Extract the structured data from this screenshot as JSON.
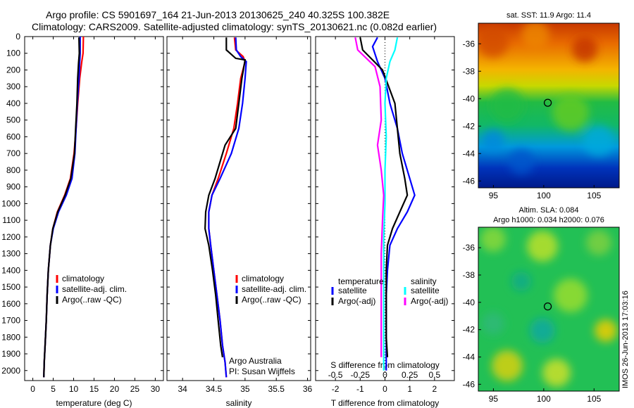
{
  "title_line1": "Argo profile: CS 5901697_164 21-Jun-2013 20130625_240 40.325S 100.382E",
  "title_line2": "Climatology: CARS2009. Satellite-adjusted climatology: synTS_20130621.nc (0.082d earlier)",
  "depth_ticks": [
    "0",
    "100",
    "200",
    "300",
    "400",
    "500",
    "600",
    "700",
    "800",
    "900",
    "1000",
    "1100",
    "1200",
    "1300",
    "1400",
    "1500",
    "1600",
    "1700",
    "1800",
    "1900",
    "2000"
  ],
  "chart_data": [
    {
      "type": "line",
      "xlabel": "temperature (deg C)",
      "x_ticks": [
        "0",
        "5",
        "10",
        "15",
        "20",
        "25",
        "30"
      ],
      "xlim": [
        -2,
        32
      ],
      "ylim": [
        2060,
        0
      ],
      "legend": [
        "climatology",
        "satellite-adj. clim.",
        "Argo(..raw -QC)"
      ],
      "colors": {
        "climatology": "#ff0000",
        "satellite": "#0000ff",
        "argo": "#000000"
      },
      "series": [
        {
          "name": "climatology",
          "color": "#ff0000",
          "points": [
            [
              12.4,
              0
            ],
            [
              12.3,
              100
            ],
            [
              12.0,
              150
            ],
            [
              11.5,
              250
            ],
            [
              11.0,
              400
            ],
            [
              10.6,
              550
            ],
            [
              10.1,
              700
            ],
            [
              9.2,
              850
            ],
            [
              7.8,
              950
            ],
            [
              6.0,
              1050
            ],
            [
              4.9,
              1150
            ],
            [
              4.3,
              1250
            ],
            [
              3.8,
              1400
            ],
            [
              3.5,
              1550
            ],
            [
              3.3,
              1700
            ],
            [
              3.0,
              1850
            ],
            [
              2.8,
              1950
            ],
            [
              2.7,
              2040
            ]
          ]
        },
        {
          "name": "satellite-adj. clim.",
          "color": "#0000ff",
          "points": [
            [
              11.6,
              0
            ],
            [
              11.6,
              100
            ],
            [
              11.5,
              150
            ],
            [
              11.3,
              250
            ],
            [
              10.9,
              400
            ],
            [
              10.6,
              550
            ],
            [
              10.3,
              700
            ],
            [
              9.6,
              850
            ],
            [
              8.2,
              950
            ],
            [
              6.3,
              1050
            ],
            [
              5.0,
              1150
            ],
            [
              4.3,
              1250
            ],
            [
              3.8,
              1400
            ],
            [
              3.5,
              1550
            ],
            [
              3.3,
              1700
            ],
            [
              3.0,
              1850
            ],
            [
              2.8,
              1950
            ],
            [
              2.7,
              2040
            ]
          ]
        },
        {
          "name": "Argo(..raw -QC)",
          "color": "#000000",
          "points": [
            [
              11.3,
              5
            ],
            [
              11.4,
              100
            ],
            [
              11.2,
              160
            ],
            [
              11.0,
              250
            ],
            [
              10.8,
              400
            ],
            [
              10.5,
              550
            ],
            [
              10.2,
              700
            ],
            [
              9.3,
              850
            ],
            [
              7.9,
              950
            ],
            [
              6.1,
              1050
            ],
            [
              4.9,
              1150
            ],
            [
              4.3,
              1250
            ],
            [
              3.8,
              1400
            ],
            [
              3.5,
              1550
            ],
            [
              3.3,
              1700
            ],
            [
              3.0,
              1850
            ],
            [
              2.8,
              1950
            ],
            [
              2.7,
              2040
            ]
          ]
        }
      ]
    },
    {
      "type": "line",
      "xlabel": "salinity",
      "x_ticks": [
        "34",
        "34.5",
        "35",
        "35.5",
        "36"
      ],
      "xlim": [
        33.75,
        36.05
      ],
      "ylim": [
        2060,
        0
      ],
      "legend": [
        "climatology",
        "satellite-adj. clim.",
        "Argo(..raw -QC)"
      ],
      "annotation": [
        "Argo Australia",
        "PI: Susan Wijffels"
      ],
      "series": [
        {
          "name": "climatology",
          "color": "#ff0000",
          "points": [
            [
              34.83,
              5
            ],
            [
              34.85,
              80
            ],
            [
              34.97,
              120
            ],
            [
              35.0,
              150
            ],
            [
              34.93,
              250
            ],
            [
              34.88,
              400
            ],
            [
              34.82,
              550
            ],
            [
              34.7,
              700
            ],
            [
              34.57,
              850
            ],
            [
              34.47,
              950
            ],
            [
              34.42,
              1050
            ],
            [
              34.42,
              1150
            ],
            [
              34.45,
              1250
            ],
            [
              34.5,
              1400
            ],
            [
              34.55,
              1550
            ],
            [
              34.6,
              1700
            ],
            [
              34.64,
              1850
            ],
            [
              34.68,
              1950
            ],
            [
              34.7,
              2040
            ]
          ]
        },
        {
          "name": "satellite-adj. clim.",
          "color": "#0000ff",
          "points": [
            [
              34.85,
              5
            ],
            [
              34.86,
              80
            ],
            [
              34.93,
              120
            ],
            [
              35.02,
              150
            ],
            [
              35.0,
              250
            ],
            [
              34.96,
              400
            ],
            [
              34.9,
              550
            ],
            [
              34.78,
              700
            ],
            [
              34.6,
              850
            ],
            [
              34.47,
              950
            ],
            [
              34.42,
              1050
            ],
            [
              34.42,
              1150
            ],
            [
              34.45,
              1250
            ],
            [
              34.5,
              1400
            ],
            [
              34.55,
              1550
            ],
            [
              34.6,
              1700
            ],
            [
              34.64,
              1850
            ],
            [
              34.68,
              1950
            ],
            [
              34.7,
              2040
            ]
          ]
        },
        {
          "name": "Argo(..raw -QC)",
          "color": "#000000",
          "points": [
            [
              34.7,
              5
            ],
            [
              34.7,
              80
            ],
            [
              34.85,
              130
            ],
            [
              35.0,
              140
            ],
            [
              34.95,
              250
            ],
            [
              34.9,
              400
            ],
            [
              34.85,
              550
            ],
            [
              34.68,
              650
            ],
            [
              34.6,
              750
            ],
            [
              34.52,
              850
            ],
            [
              34.42,
              950
            ],
            [
              34.37,
              1050
            ],
            [
              34.36,
              1150
            ],
            [
              34.42,
              1250
            ],
            [
              34.48,
              1400
            ],
            [
              34.53,
              1550
            ],
            [
              34.57,
              1700
            ],
            [
              34.61,
              1850
            ],
            [
              34.64,
              1920
            ]
          ]
        }
      ]
    },
    {
      "type": "line",
      "xlabel": "T difference from climatology",
      "xlabel_top": "S difference from climatology",
      "x_ticks": [
        "-2",
        "-1",
        "0",
        "1",
        "2"
      ],
      "x_ticks_top": [
        "-0.5",
        "-0.25",
        "0",
        "0.25",
        "0.5"
      ],
      "xlim": [
        -2.8,
        2.8
      ],
      "ylim": [
        2060,
        0
      ],
      "legend": {
        "temperature": [
          "satellite",
          "Argo(-adj)"
        ],
        "salinity": [
          "satellite",
          "Argo(-adj)"
        ]
      },
      "series": [
        {
          "name": "satellite",
          "color": "#0000ff",
          "points": [
            [
              -0.3,
              5
            ],
            [
              -0.5,
              60
            ],
            [
              -0.3,
              150
            ],
            [
              0.0,
              250
            ],
            [
              0.2,
              400
            ],
            [
              0.5,
              550
            ],
            [
              0.7,
              700
            ],
            [
              1.0,
              850
            ],
            [
              1.2,
              950
            ],
            [
              0.9,
              1050
            ],
            [
              0.5,
              1150
            ],
            [
              0.2,
              1250
            ],
            [
              0.1,
              1400
            ],
            [
              0.05,
              1550
            ],
            [
              0.05,
              1800
            ],
            [
              0.05,
              2000
            ]
          ]
        },
        {
          "name": "Argo(-adj)",
          "color": "#000000",
          "points": [
            [
              -1.0,
              5
            ],
            [
              -0.9,
              80
            ],
            [
              -0.1,
              200
            ],
            [
              0.4,
              400
            ],
            [
              0.5,
              550
            ],
            [
              0.6,
              700
            ],
            [
              0.8,
              850
            ],
            [
              0.9,
              950
            ],
            [
              0.6,
              1050
            ],
            [
              0.3,
              1150
            ],
            [
              0.1,
              1250
            ],
            [
              0.05,
              1400
            ],
            [
              0.05,
              1600
            ],
            [
              0.05,
              1800
            ],
            [
              0.1,
              1920
            ]
          ]
        },
        {
          "name": "satellite",
          "color": "#00ffff",
          "points": [
            [
              0.5,
              5
            ],
            [
              0.4,
              80
            ],
            [
              0.2,
              150
            ],
            [
              0.05,
              250
            ],
            [
              0.0,
              400
            ],
            [
              0.05,
              600
            ],
            [
              0.0,
              800
            ],
            [
              0.0,
              1000
            ],
            [
              -0.05,
              1200
            ],
            [
              -0.05,
              1400
            ],
            [
              -0.05,
              1600
            ],
            [
              -0.05,
              1800
            ],
            [
              -0.05,
              2000
            ]
          ]
        },
        {
          "name": "Argo(-adj)",
          "color": "#ff00ff",
          "points": [
            [
              -1.2,
              5
            ],
            [
              -1.1,
              80
            ],
            [
              -0.4,
              180
            ],
            [
              -0.2,
              300
            ],
            [
              -0.15,
              500
            ],
            [
              -0.3,
              650
            ],
            [
              -0.15,
              800
            ],
            [
              -0.05,
              950
            ],
            [
              -0.1,
              1100
            ],
            [
              -0.15,
              1300
            ],
            [
              -0.15,
              1500
            ],
            [
              -0.15,
              1700
            ],
            [
              -0.15,
              1920
            ]
          ]
        }
      ]
    },
    {
      "type": "heatmap",
      "title": "sat. SST: 11.9  Argo: 11.4",
      "x_ticks": [
        "95",
        "100",
        "105"
      ],
      "y_ticks": [
        "-36",
        "-38",
        "-40",
        "-42",
        "-44",
        "-46"
      ],
      "xlim": [
        93.5,
        107.5
      ],
      "ylim": [
        -46.5,
        -34.5
      ],
      "marker": {
        "lon": 100.4,
        "lat": -40.3
      }
    },
    {
      "type": "heatmap",
      "title_line1": "Altim. SLA: 0.084",
      "title_line2": "Argo h1000: 0.034 h2000: 0.076",
      "x_ticks": [
        "95",
        "100",
        "105"
      ],
      "y_ticks": [
        "-36",
        "-38",
        "-40",
        "-42",
        "-44",
        "-46"
      ],
      "xlim": [
        93.5,
        107.5
      ],
      "ylim": [
        -46.5,
        -34.5
      ],
      "marker": {
        "lon": 100.4,
        "lat": -40.3
      }
    }
  ],
  "side_stamp": "IMOS 26-Jun-2013 17:03:16"
}
